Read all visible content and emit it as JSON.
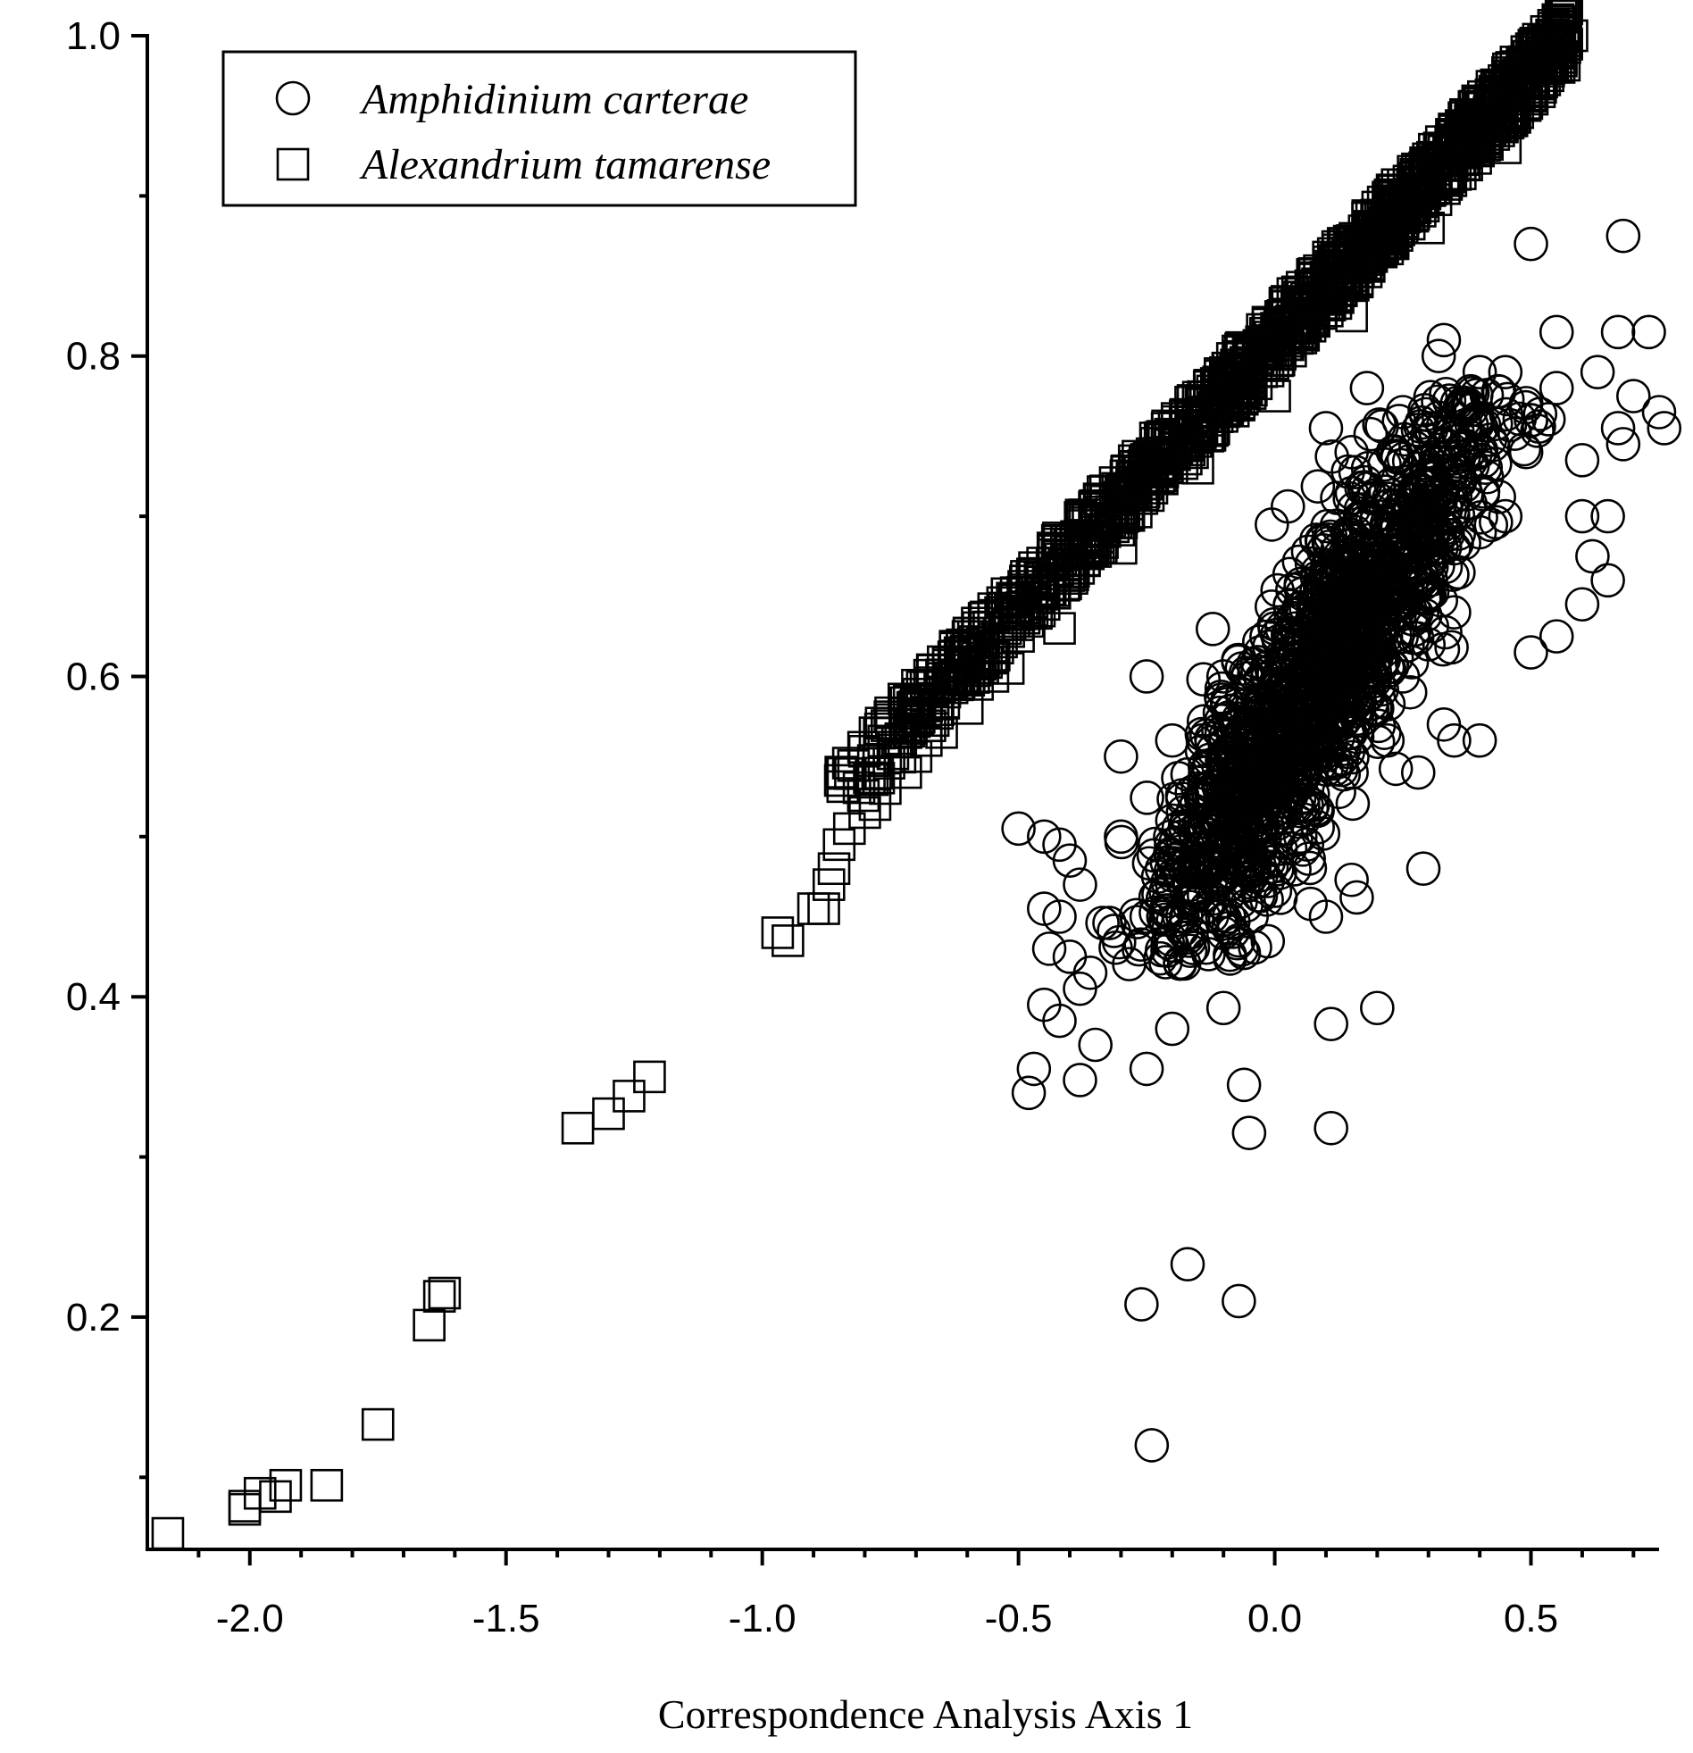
{
  "chart_data": {
    "type": "scatter",
    "title": "",
    "xlabel": "Correspondence Analysis Axis 1",
    "ylabel": "",
    "xlim": [
      -2.2,
      0.75
    ],
    "ylim": [
      0.055,
      1.0
    ],
    "xticks": [
      -2.0,
      -1.5,
      -1.0,
      -0.5,
      0.0,
      0.5
    ],
    "xtick_labels": [
      "-2.0",
      "-1.5",
      "-1.0",
      "-0.5",
      "0.0",
      "0.5"
    ],
    "yticks": [
      0.2,
      0.4,
      0.6,
      0.8,
      1.0
    ],
    "ytick_labels": [
      "0.2",
      "0.4",
      "0.6",
      "0.8",
      "1.0"
    ],
    "grid": false,
    "legend": "top-left",
    "series": [
      {
        "name": "Amphidinium carterae",
        "marker": "circle",
        "color": "#000000",
        "points": [
          [
            0.05,
            0.6
          ],
          [
            0.1,
            0.62
          ],
          [
            0.15,
            0.64
          ],
          [
            0.2,
            0.65
          ],
          [
            0.25,
            0.66
          ],
          [
            0.0,
            0.58
          ],
          [
            -0.05,
            0.57
          ],
          [
            -0.1,
            0.55
          ],
          [
            -0.15,
            0.53
          ],
          [
            -0.2,
            0.51
          ],
          [
            0.3,
            0.67
          ],
          [
            0.35,
            0.68
          ],
          [
            0.4,
            0.69
          ],
          [
            0.45,
            0.7
          ],
          [
            0.1,
            0.66
          ],
          [
            0.2,
            0.7
          ],
          [
            0.3,
            0.72
          ],
          [
            0.0,
            0.63
          ],
          [
            -0.1,
            0.6
          ],
          [
            -0.2,
            0.56
          ],
          [
            0.1,
            0.56
          ],
          [
            0.2,
            0.58
          ],
          [
            0.3,
            0.62
          ],
          [
            0.0,
            0.53
          ],
          [
            -0.1,
            0.5
          ],
          [
            -0.2,
            0.47
          ],
          [
            -0.25,
            0.45
          ],
          [
            0.05,
            0.5
          ],
          [
            0.15,
            0.54
          ],
          [
            0.25,
            0.6
          ],
          [
            0.35,
            0.64
          ],
          [
            0.4,
            0.74
          ],
          [
            -0.3,
            0.5
          ],
          [
            -0.3,
            0.55
          ],
          [
            -0.25,
            0.6
          ],
          [
            0.5,
            0.87
          ],
          [
            0.68,
            0.875
          ],
          [
            0.55,
            0.815
          ],
          [
            0.67,
            0.815
          ],
          [
            0.73,
            0.815
          ],
          [
            0.33,
            0.81
          ],
          [
            0.32,
            0.8
          ],
          [
            0.63,
            0.79
          ],
          [
            0.7,
            0.775
          ],
          [
            0.75,
            0.765
          ],
          [
            0.76,
            0.755
          ],
          [
            0.67,
            0.755
          ],
          [
            0.68,
            0.745
          ],
          [
            0.6,
            0.735
          ],
          [
            0.45,
            0.79
          ],
          [
            0.4,
            0.79
          ],
          [
            0.5,
            0.76
          ],
          [
            0.55,
            0.78
          ],
          [
            0.6,
            0.7
          ],
          [
            0.65,
            0.7
          ],
          [
            0.62,
            0.675
          ],
          [
            0.65,
            0.66
          ],
          [
            0.6,
            0.645
          ],
          [
            0.55,
            0.625
          ],
          [
            0.5,
            0.615
          ],
          [
            -0.5,
            0.505
          ],
          [
            -0.45,
            0.5
          ],
          [
            -0.42,
            0.495
          ],
          [
            -0.4,
            0.485
          ],
          [
            -0.38,
            0.47
          ],
          [
            -0.45,
            0.455
          ],
          [
            -0.42,
            0.45
          ],
          [
            -0.44,
            0.43
          ],
          [
            -0.4,
            0.425
          ],
          [
            -0.36,
            0.415
          ],
          [
            -0.45,
            0.395
          ],
          [
            -0.42,
            0.385
          ],
          [
            -0.38,
            0.405
          ],
          [
            -0.35,
            0.37
          ],
          [
            -0.38,
            0.348
          ],
          [
            -0.47,
            0.355
          ],
          [
            -0.48,
            0.34
          ],
          [
            -0.25,
            0.355
          ],
          [
            -0.06,
            0.345
          ],
          [
            -0.05,
            0.315
          ],
          [
            0.11,
            0.318
          ],
          [
            0.11,
            0.383
          ],
          [
            0.2,
            0.393
          ],
          [
            -0.1,
            0.393
          ],
          [
            -0.2,
            0.38
          ],
          [
            0.29,
            0.48
          ],
          [
            0.16,
            0.462
          ],
          [
            0.1,
            0.45
          ],
          [
            0.07,
            0.458
          ],
          [
            0.15,
            0.473
          ],
          [
            0.22,
            0.56
          ],
          [
            0.28,
            0.54
          ],
          [
            0.33,
            0.57
          ],
          [
            0.4,
            0.56
          ],
          [
            0.35,
            0.56
          ],
          [
            0.18,
            0.78
          ],
          [
            0.25,
            0.765
          ],
          [
            0.3,
            0.755
          ],
          [
            0.1,
            0.755
          ],
          [
            0.15,
            0.74
          ],
          [
            -0.17,
            0.233
          ],
          [
            -0.26,
            0.208
          ],
          [
            -0.07,
            0.21
          ],
          [
            -0.24,
            0.12
          ]
        ]
      },
      {
        "name": "Alexandrium tamarense",
        "marker": "square",
        "color": "#000000",
        "points": [
          [
            -2.16,
            0.065
          ],
          [
            -2.01,
            0.08
          ],
          [
            -2.01,
            0.082
          ],
          [
            -1.98,
            0.09
          ],
          [
            -1.95,
            0.088
          ],
          [
            -1.93,
            0.095
          ],
          [
            -1.85,
            0.095
          ],
          [
            -1.75,
            0.133
          ],
          [
            -1.65,
            0.195
          ],
          [
            -1.63,
            0.213
          ],
          [
            -1.62,
            0.215
          ],
          [
            -1.36,
            0.318
          ],
          [
            -1.3,
            0.327
          ],
          [
            -1.26,
            0.338
          ],
          [
            -1.22,
            0.35
          ],
          [
            -0.97,
            0.44
          ],
          [
            -0.95,
            0.435
          ],
          [
            -0.9,
            0.455
          ],
          [
            -0.88,
            0.455
          ],
          [
            -0.87,
            0.47
          ],
          [
            -0.86,
            0.48
          ],
          [
            -0.85,
            0.495
          ],
          [
            -0.83,
            0.505
          ],
          [
            -0.8,
            0.515
          ],
          [
            -0.78,
            0.52
          ],
          [
            -0.76,
            0.53
          ],
          [
            -0.72,
            0.54
          ],
          [
            -0.7,
            0.55
          ],
          [
            -0.68,
            0.56
          ],
          [
            -0.65,
            0.565
          ],
          [
            -0.6,
            0.58
          ],
          [
            -0.55,
            0.6
          ],
          [
            -0.5,
            0.625
          ],
          [
            -0.45,
            0.645
          ],
          [
            -0.4,
            0.665
          ],
          [
            -0.35,
            0.685
          ],
          [
            -0.3,
            0.705
          ],
          [
            -0.25,
            0.72
          ],
          [
            -0.2,
            0.74
          ],
          [
            -0.15,
            0.76
          ],
          [
            -0.1,
            0.78
          ],
          [
            -0.05,
            0.795
          ],
          [
            0.0,
            0.81
          ],
          [
            0.05,
            0.83
          ],
          [
            0.1,
            0.845
          ],
          [
            0.15,
            0.86
          ],
          [
            0.2,
            0.88
          ],
          [
            0.25,
            0.895
          ],
          [
            0.3,
            0.915
          ],
          [
            0.35,
            0.93
          ],
          [
            0.4,
            0.95
          ],
          [
            0.45,
            0.965
          ],
          [
            0.5,
            0.98
          ],
          [
            0.55,
            0.995
          ],
          [
            0.58,
            1.0
          ],
          [
            -0.62,
            0.6
          ],
          [
            -0.58,
            0.595
          ],
          [
            -0.52,
            0.605
          ],
          [
            -0.42,
            0.63
          ],
          [
            -0.3,
            0.68
          ],
          [
            -0.15,
            0.73
          ],
          [
            0.0,
            0.775
          ],
          [
            0.15,
            0.825
          ],
          [
            0.3,
            0.88
          ],
          [
            0.45,
            0.93
          ]
        ]
      }
    ]
  }
}
